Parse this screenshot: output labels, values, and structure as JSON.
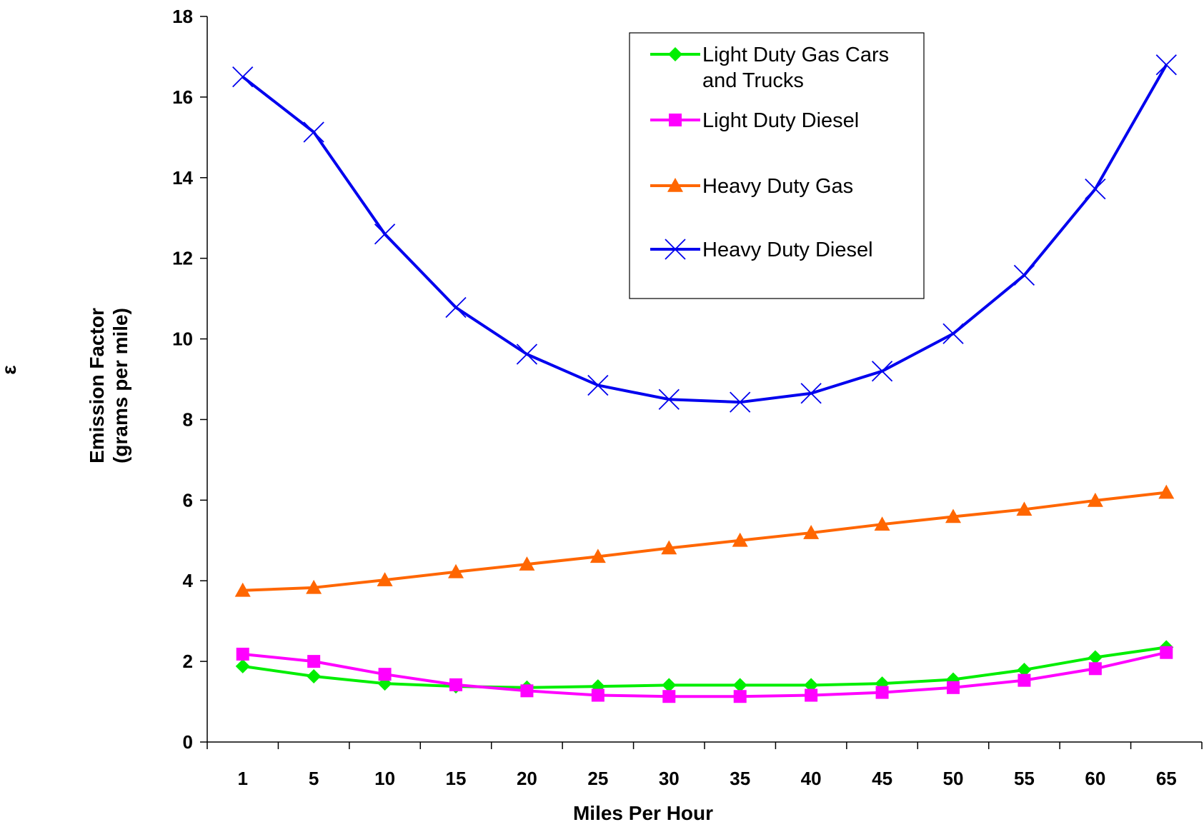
{
  "chart_data": {
    "type": "line",
    "title": "",
    "side_label": "ε",
    "xlabel": "Miles Per Hour",
    "ylabel_lines": [
      "Emission Factor",
      "(grams per mile)"
    ],
    "categories": [
      "1",
      "5",
      "10",
      "15",
      "20",
      "25",
      "30",
      "35",
      "40",
      "45",
      "50",
      "55",
      "60",
      "65"
    ],
    "ylim": [
      0,
      18
    ],
    "yticks": [
      0,
      2,
      4,
      6,
      8,
      10,
      12,
      14,
      16,
      18
    ],
    "grid": false,
    "legend_position": "top-right",
    "series": [
      {
        "name_lines": [
          "Light Duty Gas Cars",
          "and Trucks"
        ],
        "color": "#00ee00",
        "marker": "diamond",
        "values": [
          1.88,
          1.63,
          1.45,
          1.38,
          1.35,
          1.38,
          1.41,
          1.41,
          1.41,
          1.45,
          1.55,
          1.79,
          2.1,
          2.35
        ]
      },
      {
        "name_lines": [
          "Light Duty Diesel"
        ],
        "color": "#ff00ff",
        "marker": "square",
        "values": [
          2.18,
          2.0,
          1.68,
          1.42,
          1.27,
          1.16,
          1.13,
          1.13,
          1.16,
          1.23,
          1.35,
          1.53,
          1.82,
          2.22
        ]
      },
      {
        "name_lines": [
          "Heavy Duty Gas"
        ],
        "color": "#ff6600",
        "marker": "triangle",
        "values": [
          3.76,
          3.83,
          4.02,
          4.22,
          4.41,
          4.6,
          4.81,
          5.0,
          5.19,
          5.4,
          5.59,
          5.77,
          5.99,
          6.19
        ]
      },
      {
        "name_lines": [
          "Heavy Duty Diesel"
        ],
        "color": "#0000ee",
        "marker": "x",
        "values": [
          16.5,
          15.13,
          12.6,
          10.78,
          9.62,
          8.85,
          8.5,
          8.43,
          8.65,
          9.2,
          10.13,
          11.58,
          13.72,
          16.8
        ]
      }
    ]
  }
}
